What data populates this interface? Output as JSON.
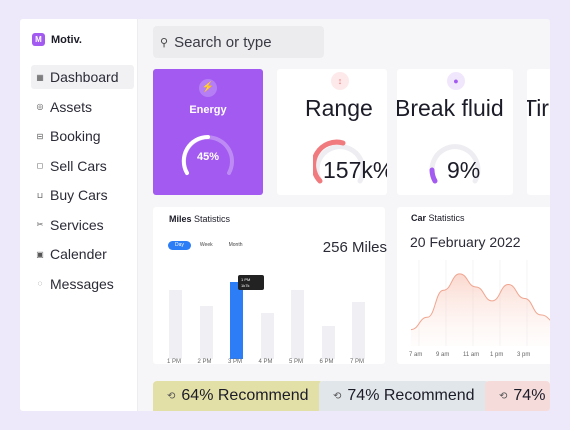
{
  "app": {
    "name": "Motiv."
  },
  "icons": {
    "logo": "logo-icon",
    "search": "search-icon",
    "energy": "lightning-icon",
    "range": "arrows-vertical-icon",
    "fluid": "drop-icon",
    "recommend": "recycle-icon"
  },
  "colors": {
    "accent": "#a25af1",
    "energy_card": "#a25af1",
    "range_gauge": "#f07a7e",
    "fluid_gauge": "#a25af1",
    "selected_bar": "#2c7df6",
    "rec_1": "#e3e0a7",
    "rec_2": "#e1e6ea",
    "rec_3": "#f5dcdb"
  },
  "sidebar": {
    "items": [
      {
        "label": "Dashboard",
        "icon": "grid-icon",
        "active": true
      },
      {
        "label": "Assets",
        "icon": "assets-icon",
        "active": false
      },
      {
        "label": "Booking",
        "icon": "car-icon",
        "active": false
      },
      {
        "label": "Sell Cars",
        "icon": "bag-icon",
        "active": false
      },
      {
        "label": "Buy Cars",
        "icon": "cart-icon",
        "active": false
      },
      {
        "label": "Services",
        "icon": "scissors-icon",
        "active": false
      },
      {
        "label": "Calender",
        "icon": "calendar-icon",
        "active": false
      },
      {
        "label": "Messages",
        "icon": "message-icon",
        "active": false
      }
    ]
  },
  "search": {
    "value": "",
    "placeholder": "Search or type"
  },
  "cards": {
    "energy": {
      "title": "Energy",
      "value": "45%",
      "percent": 45
    },
    "range": {
      "title": "Range",
      "value": "157k%",
      "percent": 65
    },
    "fluid": {
      "title": "Break fluid",
      "value": "9%",
      "percent": 9
    },
    "tires": {
      "title": "Tir"
    }
  },
  "miles": {
    "title_bold": "Miles",
    "title_rest": " Statistics",
    "tabs": [
      "Day",
      "Week",
      "Month"
    ],
    "active_tab": 0,
    "total": "256 Miles",
    "tooltip_line1": "1 PM",
    "tooltip_line2": "1k7k"
  },
  "car": {
    "title_bold": "Car",
    "title_rest": " Statistics",
    "date": "20 February 2022",
    "x_labels": [
      "7 am",
      "9 am",
      "11 am",
      "1 pm",
      "3 pm"
    ]
  },
  "recommend": [
    {
      "text": "64% Recommend",
      "color": "#e3e0a7"
    },
    {
      "text": "74% Recommend",
      "color": "#e1e6ea"
    },
    {
      "text": "74%",
      "color": "#f5dcdb"
    }
  ],
  "chart_data": [
    {
      "type": "bar",
      "title": "Miles Statistics",
      "categories": [
        "1 PM",
        "2 PM",
        "3 PM",
        "4 PM",
        "5 PM",
        "6 PM",
        "7 PM"
      ],
      "values": [
        78,
        60,
        88,
        52,
        78,
        38,
        65
      ],
      "highlight": 2,
      "ylim": [
        0,
        100
      ],
      "grid": false
    },
    {
      "type": "area",
      "title": "Car Statistics",
      "x": [
        "7 am",
        "8 am",
        "9 am",
        "10 am",
        "11 am",
        "12 pm",
        "1 pm",
        "2 pm",
        "3 pm",
        "4 pm"
      ],
      "values": [
        20,
        35,
        68,
        88,
        72,
        55,
        75,
        58,
        38,
        28
      ],
      "ylim": [
        0,
        100
      ],
      "grid": true
    }
  ]
}
